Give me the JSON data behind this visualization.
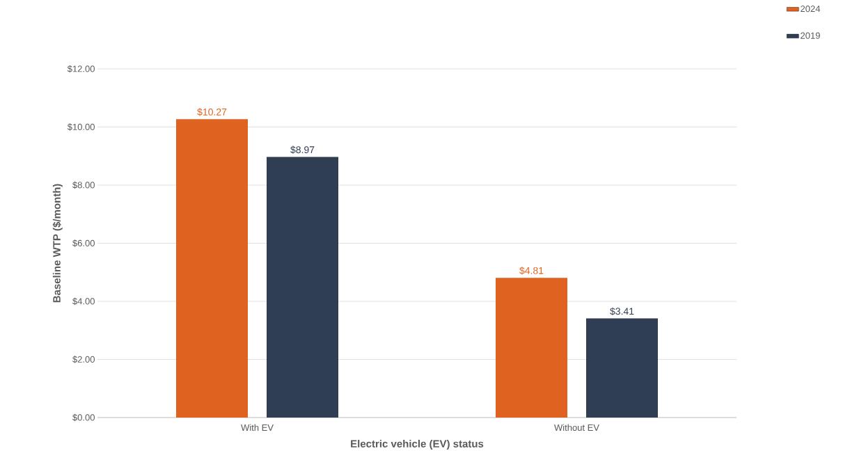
{
  "chart_data": {
    "type": "bar",
    "xlabel": "Electric vehicle (EV) status",
    "ylabel": "Baseline WTP ($/month)",
    "categories": [
      "With EV",
      "Without EV"
    ],
    "series": [
      {
        "name": "2024",
        "color": "#e06220",
        "values": [
          10.27,
          4.81
        ],
        "value_labels": [
          "$10.27",
          "$4.81"
        ]
      },
      {
        "name": "2019",
        "color": "#2f3e52",
        "values": [
          8.97,
          3.41
        ],
        "value_labels": [
          "$8.97",
          "$3.41"
        ]
      }
    ],
    "ylim": [
      0,
      12
    ],
    "yticks": [
      {
        "value": 0,
        "label": "$0.00"
      },
      {
        "value": 2,
        "label": "$2.00"
      },
      {
        "value": 4,
        "label": "$4.00"
      },
      {
        "value": 6,
        "label": "$6.00"
      },
      {
        "value": 8,
        "label": "$8.00"
      },
      {
        "value": 10,
        "label": "$10.00"
      },
      {
        "value": 12,
        "label": "$12.00"
      }
    ],
    "grid": "y",
    "legend": "top right"
  }
}
